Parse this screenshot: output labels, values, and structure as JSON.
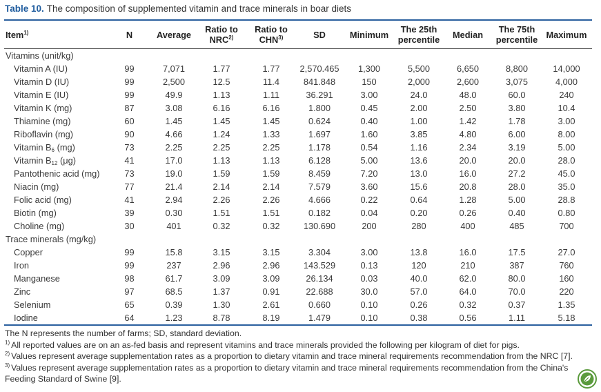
{
  "caption": {
    "label": "Table 10.",
    "text": "The composition of supplemented vitamin and trace minerals in boar diets"
  },
  "table": {
    "header": [
      {
        "text": "Item",
        "sup": "1)"
      },
      {
        "text": "N"
      },
      {
        "text": "Average"
      },
      {
        "text": "Ratio to NRC",
        "sup": "2)"
      },
      {
        "text": "Ratio to CHN",
        "sup": "3)"
      },
      {
        "text": "SD"
      },
      {
        "text": "Minimum"
      },
      {
        "text": "The 25th percentile"
      },
      {
        "text": "Median"
      },
      {
        "text": "The 75th percentile"
      },
      {
        "text": "Maximum"
      }
    ],
    "sections": [
      {
        "title": "Vitamins (unit/kg)",
        "rows": [
          {
            "item": "Vitamin A (IU)",
            "values": [
              "99",
              "7,071",
              "1.77",
              "1.77",
              "2,570.465",
              "1,300",
              "5,500",
              "6,650",
              "8,800",
              "14,000"
            ]
          },
          {
            "item": "Vitamin D (IU)",
            "values": [
              "99",
              "2,500",
              "12.5",
              "11.4",
              "841.848",
              "150",
              "2,000",
              "2,600",
              "3,075",
              "4,000"
            ]
          },
          {
            "item": "Vitamin E (IU)",
            "values": [
              "99",
              "49.9",
              "1.13",
              "1.11",
              "36.291",
              "3.00",
              "24.0",
              "48.0",
              "60.0",
              "240"
            ]
          },
          {
            "item": "Vitamin K (mg)",
            "values": [
              "87",
              "3.08",
              "6.16",
              "6.16",
              "1.800",
              "0.45",
              "2.00",
              "2.50",
              "3.80",
              "10.4"
            ]
          },
          {
            "item": "Thiamine (mg)",
            "values": [
              "60",
              "1.45",
              "1.45",
              "1.45",
              "0.624",
              "0.40",
              "1.00",
              "1.42",
              "1.78",
              "3.00"
            ]
          },
          {
            "item": "Riboflavin (mg)",
            "values": [
              "90",
              "4.66",
              "1.24",
              "1.33",
              "1.697",
              "1.60",
              "3.85",
              "4.80",
              "6.00",
              "8.00"
            ]
          },
          {
            "item": {
              "text": "Vitamin B",
              "sub": "6",
              "after": "(mg)"
            },
            "values": [
              "73",
              "2.25",
              "2.25",
              "2.25",
              "1.178",
              "0.54",
              "1.16",
              "2.34",
              "3.19",
              "5.00"
            ]
          },
          {
            "item": {
              "text": "Vitamin B",
              "sub": "12",
              "after": "(μg)"
            },
            "values": [
              "41",
              "17.0",
              "1.13",
              "1.13",
              "6.128",
              "5.00",
              "13.6",
              "20.0",
              "20.0",
              "28.0"
            ]
          },
          {
            "item": "Pantothenic acid (mg)",
            "values": [
              "73",
              "19.0",
              "1.59",
              "1.59",
              "8.459",
              "7.20",
              "13.0",
              "16.0",
              "27.2",
              "45.0"
            ]
          },
          {
            "item": "Niacin (mg)",
            "values": [
              "77",
              "21.4",
              "2.14",
              "2.14",
              "7.579",
              "3.60",
              "15.6",
              "20.8",
              "28.0",
              "35.0"
            ]
          },
          {
            "item": "Folic acid (mg)",
            "values": [
              "41",
              "2.94",
              "2.26",
              "2.26",
              "4.666",
              "0.22",
              "0.64",
              "1.28",
              "5.00",
              "28.8"
            ]
          },
          {
            "item": "Biotin (mg)",
            "values": [
              "39",
              "0.30",
              "1.51",
              "1.51",
              "0.182",
              "0.04",
              "0.20",
              "0.26",
              "0.40",
              "0.80"
            ]
          },
          {
            "item": "Choline (mg)",
            "values": [
              "30",
              "401",
              "0.32",
              "0.32",
              "130.690",
              "200",
              "280",
              "400",
              "485",
              "700"
            ]
          }
        ]
      },
      {
        "title": "Trace minerals (mg/kg)",
        "rows": [
          {
            "item": "Copper",
            "values": [
              "99",
              "15.8",
              "3.15",
              "3.15",
              "3.304",
              "3.00",
              "13.8",
              "16.0",
              "17.5",
              "27.0"
            ]
          },
          {
            "item": "Iron",
            "values": [
              "99",
              "237",
              "2.96",
              "2.96",
              "143.529",
              "0.13",
              "120",
              "210",
              "387",
              "760"
            ]
          },
          {
            "item": "Manganese",
            "values": [
              "98",
              "61.7",
              "3.09",
              "3.09",
              "26.134",
              "0.03",
              "40.0",
              "62.0",
              "80.0",
              "160"
            ]
          },
          {
            "item": "Zinc",
            "values": [
              "97",
              "68.5",
              "1.37",
              "0.91",
              "22.688",
              "30.0",
              "57.0",
              "64.0",
              "70.0",
              "220"
            ]
          },
          {
            "item": "Selenium",
            "values": [
              "65",
              "0.39",
              "1.30",
              "2.61",
              "0.660",
              "0.10",
              "0.26",
              "0.32",
              "0.37",
              "1.35"
            ]
          },
          {
            "item": "Iodine",
            "values": [
              "64",
              "1.23",
              "8.78",
              "8.19",
              "1.479",
              "0.10",
              "0.38",
              "0.56",
              "1.11",
              "5.18"
            ]
          }
        ]
      }
    ]
  },
  "notes": [
    {
      "text": "The N represents the number of farms; SD, standard deviation."
    },
    {
      "sup": "1)",
      "text": "All reported values are on an as-fed basis and represent vitamins and trace minerals provided the following per kilogram of diet for pigs."
    },
    {
      "sup": "2)",
      "text": "Values represent average supplementation rates as a proportion to dietary vitamin and trace mineral requirements recommendation from the NRC [7]."
    },
    {
      "sup": "3)",
      "text": "Values represent average supplementation rates as a proportion to dietary vitamin and trace mineral requirements recommendation from the China's Feeding Standard of Swine [9]."
    }
  ]
}
